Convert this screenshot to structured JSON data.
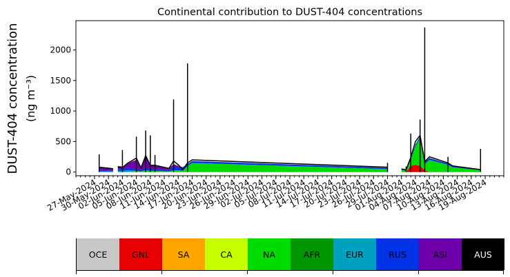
{
  "chart_data": {
    "type": "area",
    "title": "Continental contribution to DUST-404 concentrations",
    "ylabel_line1": "DUST-404 concentration",
    "ylabel_line2": "(ng m⁻³)",
    "xlabel": "",
    "ylim": [
      -60,
      2480
    ],
    "yticks": [
      0,
      500,
      1000,
      1500,
      2000
    ],
    "xlim": [
      "2024-05-23",
      "2024-08-23"
    ],
    "xticks": [
      "27-May-2024",
      "30-May-2024",
      "02-Jun-2024",
      "05-Jun-2024",
      "08-Jun-2024",
      "11-Jun-2024",
      "14-Jun-2024",
      "17-Jun-2024",
      "20-Jun-2024",
      "23-Jun-2024",
      "26-Jun-2024",
      "29-Jun-2024",
      "02-Jul-2024",
      "05-Jul-2024",
      "08-Jul-2024",
      "11-Jul-2024",
      "14-Jul-2024",
      "17-Jul-2024",
      "20-Jul-2024",
      "23-Jul-2024",
      "26-Jul-2024",
      "29-Jul-2024",
      "01-Aug-2024",
      "04-Aug-2024",
      "07-Aug-2024",
      "10-Aug-2024",
      "13-Aug-2024",
      "16-Aug-2024",
      "19-Aug-2024"
    ],
    "series_order": [
      "OCE",
      "GNL",
      "SA",
      "CA",
      "NA",
      "AFR",
      "EUR",
      "RUS",
      "ASI",
      "AUS"
    ],
    "series_colors": {
      "OCE": "#c8c8c8",
      "GNL": "#e60000",
      "SA": "#ffa500",
      "CA": "#c8ff00",
      "NA": "#00dc00",
      "AFR": "#009600",
      "EUR": "#00a0c0",
      "RUS": "#0032e6",
      "ASI": "#6e00aa",
      "AUS": "#000000"
    },
    "gaps_after": [
      "2024-05-31",
      "2024-07-29"
    ],
    "points": [
      {
        "x": "2024-05-28",
        "EUR": 15,
        "RUS": 20,
        "ASI": 40,
        "total": 80
      },
      {
        "x": "2024-05-28",
        "spike": 290
      },
      {
        "x": "2024-05-31",
        "EUR": 10,
        "RUS": 15,
        "ASI": 25,
        "total": 55
      },
      {
        "x": "2024-06-01",
        "EUR": 20,
        "RUS": 30,
        "ASI": 50,
        "total": 80
      },
      {
        "x": "2024-06-02",
        "EUR": 20,
        "RUS": 30,
        "ASI": 40,
        "total": 70
      },
      {
        "x": "2024-06-02",
        "spike": 360
      },
      {
        "x": "2024-06-03",
        "EUR": 30,
        "RUS": 40,
        "ASI": 70,
        "total": 140
      },
      {
        "x": "2024-06-05",
        "NA": 20,
        "RUS": 30,
        "ASI": 150,
        "total": 230
      },
      {
        "x": "2024-06-05",
        "spike": 580
      },
      {
        "x": "2024-06-06",
        "NA": 10,
        "RUS": 20,
        "ASI": 40,
        "total": 70
      },
      {
        "x": "2024-06-07",
        "NA": 30,
        "RUS": 40,
        "ASI": 200,
        "total": 270
      },
      {
        "x": "2024-06-07",
        "spike": 680
      },
      {
        "x": "2024-06-08",
        "NA": 20,
        "RUS": 30,
        "ASI": 60,
        "total": 110
      },
      {
        "x": "2024-06-08",
        "spike": 600
      },
      {
        "x": "2024-06-09",
        "NA": 20,
        "RUS": 30,
        "ASI": 50,
        "total": 110
      },
      {
        "x": "2024-06-09",
        "spike": 280
      },
      {
        "x": "2024-06-12",
        "NA": 10,
        "RUS": 20,
        "ASI": 30,
        "total": 60
      },
      {
        "x": "2024-06-13",
        "NA": 30,
        "RUS": 60,
        "ASI": 40,
        "total": 180
      },
      {
        "x": "2024-06-13",
        "spike": 1190
      },
      {
        "x": "2024-06-14",
        "NA": 30,
        "RUS": 50,
        "ASI": 20,
        "total": 120
      },
      {
        "x": "2024-06-15",
        "NA": 20,
        "RUS": 60,
        "total": 40
      },
      {
        "x": "2024-06-16",
        "NA": 100,
        "RUS": 30,
        "total": 150
      },
      {
        "x": "2024-06-16",
        "spike": 1780
      },
      {
        "x": "2024-06-17",
        "NA": 150,
        "RUS": 30,
        "total": 200
      },
      {
        "x": "2024-07-29",
        "NA": 50,
        "RUS": 20,
        "total": 80
      },
      {
        "x": "2024-07-29",
        "spike": 150
      },
      {
        "x": "2024-08-01",
        "NA": 30,
        "RUS": 10,
        "total": 50
      },
      {
        "x": "2024-08-02",
        "NA": 20,
        "RUS": 10,
        "total": 40
      },
      {
        "x": "2024-08-02",
        "spike": 90
      },
      {
        "x": "2024-08-03",
        "NA": 100,
        "GNL": 100,
        "RUS": 20,
        "total": 240
      },
      {
        "x": "2024-08-03",
        "spike": 630
      },
      {
        "x": "2024-08-04",
        "GNL": 120,
        "NA": 300,
        "RUS": 30,
        "total": 500
      },
      {
        "x": "2024-08-05",
        "GNL": 100,
        "NA": 450,
        "RUS": 30,
        "total": 600
      },
      {
        "x": "2024-08-05",
        "spike": 860
      },
      {
        "x": "2024-08-06",
        "GNL": 30,
        "NA": 100,
        "RUS": 30,
        "total": 170
      },
      {
        "x": "2024-08-06",
        "spike": 2370
      },
      {
        "x": "2024-08-07",
        "NA": 200,
        "RUS": 30,
        "total": 250
      },
      {
        "x": "2024-08-11",
        "NA": 120,
        "RUS": 20,
        "total": 150
      },
      {
        "x": "2024-08-11",
        "spike": 250
      },
      {
        "x": "2024-08-12",
        "NA": 80,
        "RUS": 20,
        "total": 100
      },
      {
        "x": "2024-08-18",
        "NA": 30,
        "RUS": 10,
        "total": 40
      },
      {
        "x": "2024-08-18",
        "spike": 380
      }
    ]
  },
  "legend": {
    "items": [
      {
        "label": "OCE",
        "color": "#c8c8c8",
        "text_color": "#000000"
      },
      {
        "label": "GNL",
        "color": "#e60000",
        "text_color": "#000000"
      },
      {
        "label": "SA",
        "color": "#ffa500",
        "text_color": "#000000"
      },
      {
        "label": "CA",
        "color": "#c8ff00",
        "text_color": "#000000"
      },
      {
        "label": "NA",
        "color": "#00dc00",
        "text_color": "#000000"
      },
      {
        "label": "AFR",
        "color": "#009600",
        "text_color": "#000000"
      },
      {
        "label": "EUR",
        "color": "#00a0c0",
        "text_color": "#000000"
      },
      {
        "label": "RUS",
        "color": "#0032e6",
        "text_color": "#000000"
      },
      {
        "label": "ASI",
        "color": "#6e00aa",
        "text_color": "#000000"
      },
      {
        "label": "AUS",
        "color": "#000000",
        "text_color": "#ffffff"
      }
    ]
  }
}
